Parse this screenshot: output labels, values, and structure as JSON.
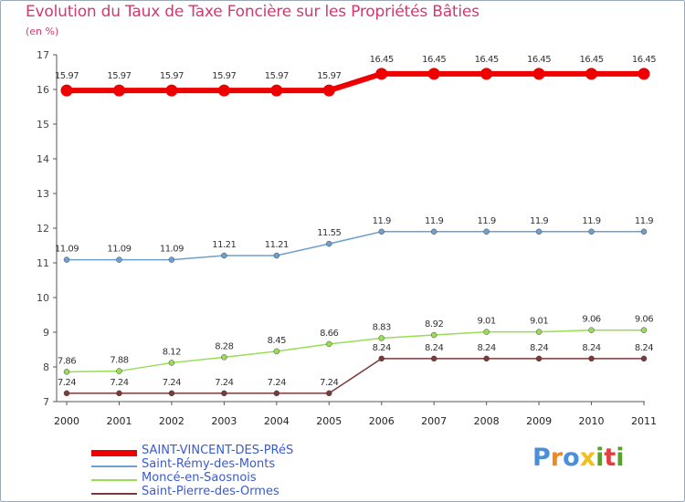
{
  "title": "Evolution du Taux de Taxe Foncière sur les Propriétés Bâties",
  "subtitle": "(en %)",
  "chart_data": {
    "type": "line",
    "title": "Evolution du Taux de Taxe Foncière sur les Propriétés Bâties",
    "ylabel": "(en %)",
    "xlabel": "",
    "x": [
      "2000",
      "2001",
      "2002",
      "2003",
      "2004",
      "2005",
      "2006",
      "2007",
      "2008",
      "2009",
      "2010",
      "2011"
    ],
    "ylim": [
      7,
      17
    ],
    "yticks": [
      "7",
      "8",
      "9",
      "10",
      "11",
      "12",
      "13",
      "14",
      "15",
      "16",
      "17"
    ],
    "series": [
      {
        "name": "SAINT-VINCENT-DES-PRéS",
        "color": "#ee0000",
        "values": [
          15.97,
          15.97,
          15.97,
          15.97,
          15.97,
          15.97,
          16.45,
          16.45,
          16.45,
          16.45,
          16.45,
          16.45
        ],
        "labels": [
          "15.97",
          "15.97",
          "15.97",
          "15.97",
          "15.97",
          "15.97",
          "16.45",
          "16.45",
          "16.45",
          "16.45",
          "16.45",
          "16.45"
        ]
      },
      {
        "name": "Saint-Rémy-des-Monts",
        "color": "#6f9fcc",
        "values": [
          11.09,
          11.09,
          11.09,
          11.21,
          11.21,
          11.55,
          11.9,
          11.9,
          11.9,
          11.9,
          11.9,
          11.9
        ],
        "labels": [
          "11.09",
          "11.09",
          "11.09",
          "11.21",
          "11.21",
          "11.55",
          "11.9",
          "11.9",
          "11.9",
          "11.9",
          "11.9",
          "11.9"
        ]
      },
      {
        "name": "Moncé-en-Saosnois",
        "color": "#99dd55",
        "values": [
          7.86,
          7.88,
          8.12,
          8.28,
          8.45,
          8.66,
          8.83,
          8.92,
          9.01,
          9.01,
          9.06,
          9.06
        ],
        "labels": [
          "7.86",
          "7.88",
          "8.12",
          "8.28",
          "8.45",
          "8.66",
          "8.83",
          "8.92",
          "9.01",
          "9.01",
          "9.06",
          "9.06"
        ]
      },
      {
        "name": "Saint-Pierre-des-Ormes",
        "color": "#7a3a3a",
        "values": [
          7.24,
          7.24,
          7.24,
          7.24,
          7.24,
          7.24,
          8.24,
          8.24,
          8.24,
          8.24,
          8.24,
          8.24
        ],
        "labels": [
          "7.24",
          "7.24",
          "7.24",
          "7.24",
          "7.24",
          "7.24",
          "8.24",
          "8.24",
          "8.24",
          "8.24",
          "8.24",
          "8.24"
        ]
      }
    ],
    "grid": false,
    "legend": "bottom-left"
  },
  "logo": {
    "letters": [
      "P",
      "r",
      "o",
      "x",
      "i",
      "t",
      "i"
    ],
    "colors": [
      "#4a8fd8",
      "#f08a20",
      "#4a8fd8",
      "#f0c020",
      "#5aa030",
      "#e04040",
      "#5aa030"
    ]
  }
}
